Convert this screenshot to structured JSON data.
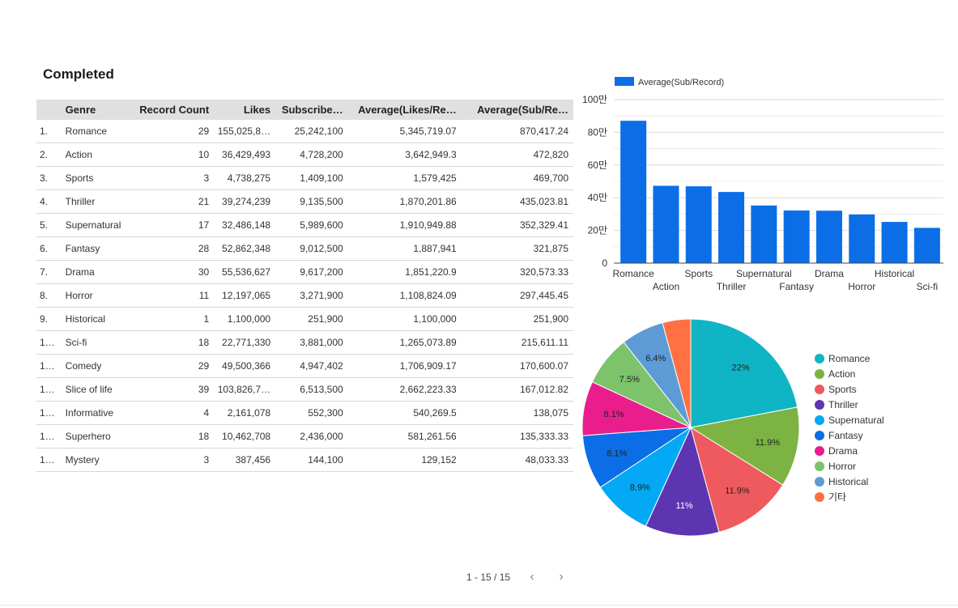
{
  "table": {
    "title": "Completed",
    "columns": [
      "",
      "Genre",
      "Record Count",
      "Likes",
      "Subscribe…",
      "Average(Likes/Re…",
      "Average(Sub/Re…"
    ],
    "rows": [
      [
        "1.",
        "Romance",
        "29",
        "155,025,8…",
        "25,242,100",
        "5,345,719.07",
        "870,417.24"
      ],
      [
        "2.",
        "Action",
        "10",
        "36,429,493",
        "4,728,200",
        "3,642,949.3",
        "472,820"
      ],
      [
        "3.",
        "Sports",
        "3",
        "4,738,275",
        "1,409,100",
        "1,579,425",
        "469,700"
      ],
      [
        "4.",
        "Thriller",
        "21",
        "39,274,239",
        "9,135,500",
        "1,870,201.86",
        "435,023.81"
      ],
      [
        "5.",
        "Supernatural",
        "17",
        "32,486,148",
        "5,989,600",
        "1,910,949.88",
        "352,329.41"
      ],
      [
        "6.",
        "Fantasy",
        "28",
        "52,862,348",
        "9,012,500",
        "1,887,941",
        "321,875"
      ],
      [
        "7.",
        "Drama",
        "30",
        "55,536,627",
        "9,617,200",
        "1,851,220.9",
        "320,573.33"
      ],
      [
        "8.",
        "Horror",
        "11",
        "12,197,065",
        "3,271,900",
        "1,108,824.09",
        "297,445.45"
      ],
      [
        "9.",
        "Historical",
        "1",
        "1,100,000",
        "251,900",
        "1,100,000",
        "251,900"
      ],
      [
        "1…",
        "Sci-fi",
        "18",
        "22,771,330",
        "3,881,000",
        "1,265,073.89",
        "215,611.11"
      ],
      [
        "1…",
        "Comedy",
        "29",
        "49,500,366",
        "4,947,402",
        "1,706,909.17",
        "170,600.07"
      ],
      [
        "1…",
        "Slice of life",
        "39",
        "103,826,7…",
        "6,513,500",
        "2,662,223.33",
        "167,012.82"
      ],
      [
        "1…",
        "Informative",
        "4",
        "2,161,078",
        "552,300",
        "540,269.5",
        "138,075"
      ],
      [
        "1…",
        "Superhero",
        "18",
        "10,462,708",
        "2,436,000",
        "581,261.56",
        "135,333.33"
      ],
      [
        "1…",
        "Mystery",
        "3",
        "387,456",
        "144,100",
        "129,152",
        "48,033.33"
      ]
    ],
    "pagination": "1 - 15 / 15"
  },
  "chart_data": [
    {
      "type": "bar",
      "categories": [
        "Romance",
        "Action",
        "Sports",
        "Thriller",
        "Supernatural",
        "Fantasy",
        "Drama",
        "Horror",
        "Historical",
        "Sci-fi"
      ],
      "series": [
        {
          "name": "Average(Sub/Record)",
          "values": [
            870417.24,
            472820,
            469700,
            435023.81,
            352329.41,
            321875,
            320573.33,
            297445.45,
            251900,
            215611.11
          ],
          "color": "#0b6ee6"
        }
      ],
      "ylim": [
        0,
        1000000
      ],
      "yticks": [
        0,
        200000,
        400000,
        600000,
        800000,
        1000000
      ],
      "ytick_labels": [
        "0",
        "20만",
        "40만",
        "60만",
        "80만",
        "100만"
      ],
      "grid": true,
      "legend": "top-left"
    },
    {
      "type": "pie",
      "labels": [
        "Romance",
        "Action",
        "Sports",
        "Thriller",
        "Supernatural",
        "Fantasy",
        "Drama",
        "Horror",
        "Historical",
        "기타"
      ],
      "values": [
        22,
        11.9,
        11.9,
        11,
        8.9,
        8.1,
        8.1,
        7.5,
        6.4,
        4.2
      ],
      "slice_labels": [
        "22%",
        "11.9%",
        "11.9%",
        "11%",
        "8.9%",
        "8.1%",
        "8.1%",
        "7.5%",
        "6.4%",
        ""
      ],
      "colors": [
        "#0fb5c4",
        "#7cb342",
        "#ef5a5f",
        "#5e35b1",
        "#03a9f4",
        "#0b6ee6",
        "#e91e8c",
        "#7dc36b",
        "#5c9bd6",
        "#ff7043"
      ],
      "legend": "right"
    }
  ]
}
